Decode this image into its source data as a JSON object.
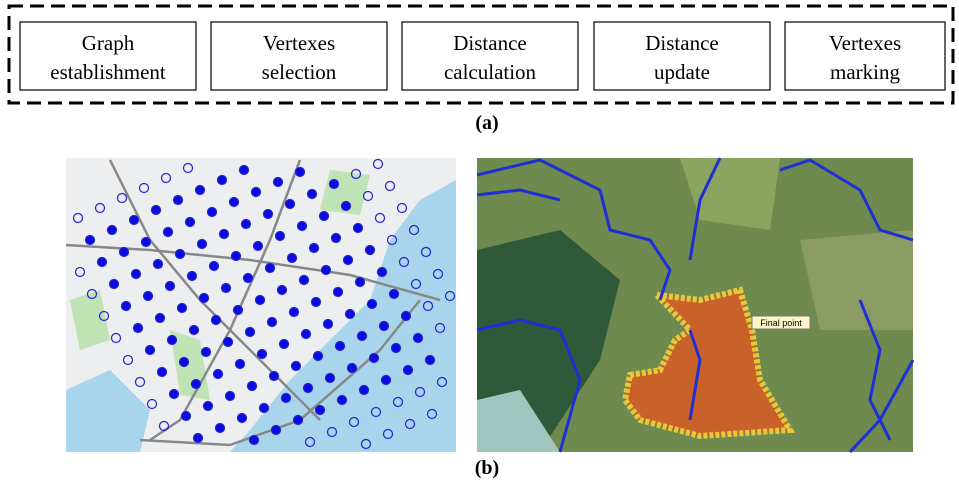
{
  "steps": [
    {
      "lines": [
        "Graph",
        "establishment"
      ]
    },
    {
      "lines": [
        "Vertexes",
        "selection"
      ]
    },
    {
      "lines": [
        "Distance",
        "calculation"
      ]
    },
    {
      "lines": [
        "Distance",
        "update"
      ]
    },
    {
      "lines": [
        "Vertexes",
        "marking"
      ]
    }
  ],
  "panel_a": {
    "label": "(a)"
  },
  "panel_b": {
    "label": "(b)",
    "map_right": {
      "annotation": "Final point"
    }
  }
}
